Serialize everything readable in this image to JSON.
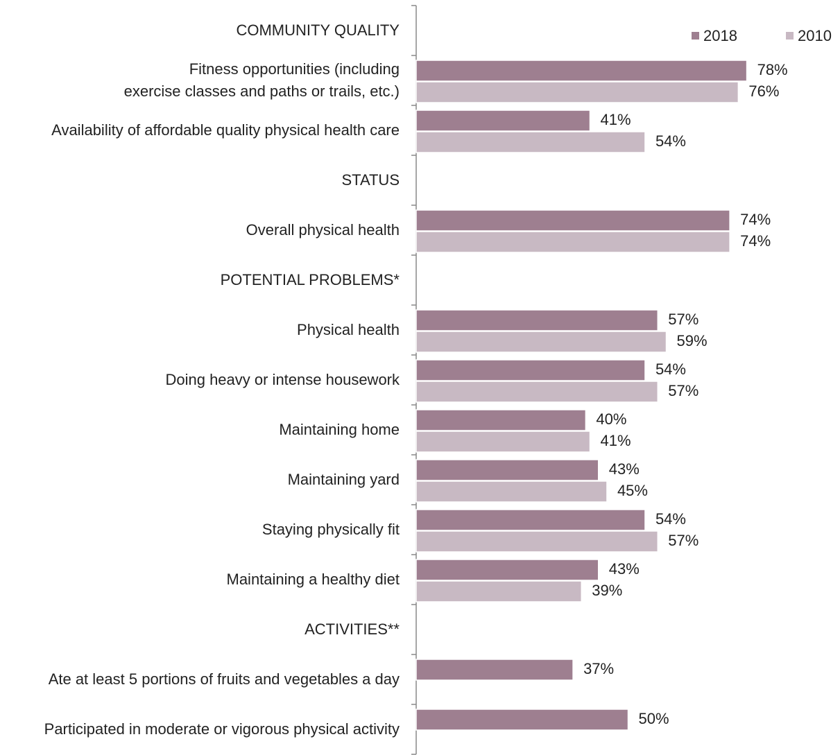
{
  "chart_data": {
    "type": "bar",
    "orientation": "horizontal",
    "categories": [
      "COMMUNITY QUALITY",
      "Fitness opportunities (including\nexercise classes and paths or trails, etc.)",
      "Availability of affordable quality physical health care",
      "STATUS",
      "Overall physical health",
      "POTENTIAL PROBLEMS*",
      "Physical health",
      "Doing heavy or intense housework",
      "Maintaining home",
      "Maintaining yard",
      "Staying physically fit",
      "Maintaining a healthy diet",
      "ACTIVITIES**",
      "Ate at least 5 portions of fruits and vegetables a day",
      "Participated in moderate or vigorous physical activity"
    ],
    "series": [
      {
        "name": "2018",
        "color": "#9e7f90",
        "values": [
          null,
          78,
          41,
          null,
          74,
          null,
          57,
          54,
          40,
          43,
          54,
          43,
          null,
          37,
          50
        ],
        "value_labels": [
          null,
          "78%",
          "41%",
          null,
          "74%",
          null,
          "57%",
          "54%",
          "40%",
          "43%",
          "54%",
          "43%",
          null,
          "37%",
          "50%"
        ]
      },
      {
        "name": "2010",
        "color": "#c8b9c3",
        "values": [
          null,
          76,
          54,
          null,
          74,
          null,
          59,
          57,
          41,
          45,
          57,
          39,
          null,
          null,
          null
        ],
        "value_labels": [
          null,
          "76%",
          "54%",
          null,
          "74%",
          null,
          "59%",
          "57%",
          "41%",
          "45%",
          "57%",
          "39%",
          null,
          null,
          null
        ]
      }
    ],
    "xlim": [
      0,
      100
    ],
    "grid": false,
    "legend": "top-right"
  }
}
